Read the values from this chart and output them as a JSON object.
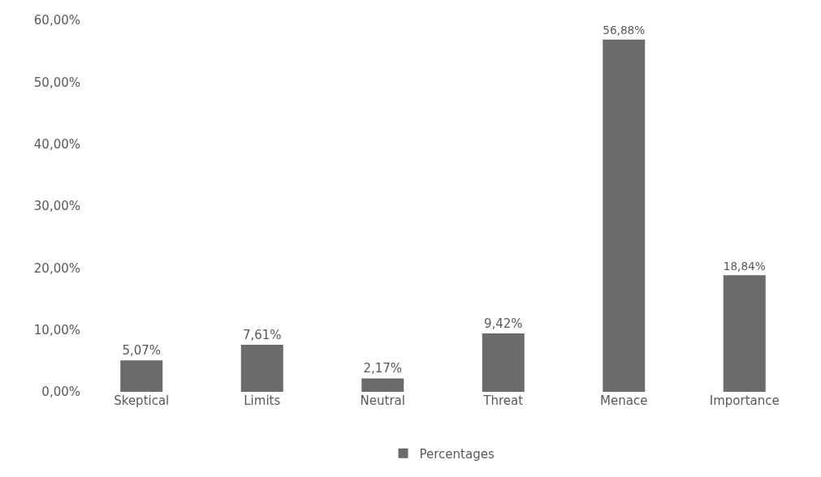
{
  "chart_data": {
    "type": "bar",
    "categories": [
      "Skeptical",
      "Limits",
      "Neutral",
      "Threat",
      "Menace",
      "Importance"
    ],
    "series": [
      {
        "name": "Percentages",
        "color": "#6b6b6b",
        "values": [
          5.07,
          7.61,
          2.17,
          9.42,
          56.88,
          18.84
        ],
        "value_labels": [
          "5,07%",
          "7,61%",
          "2,17%",
          "9,42%",
          "56,88%",
          "18,84%"
        ]
      }
    ],
    "ylim": [
      0,
      60
    ],
    "yticks": [
      {
        "value": 0,
        "label": "0,00%"
      },
      {
        "value": 10,
        "label": "10,00%"
      },
      {
        "value": 20,
        "label": "20,00%"
      },
      {
        "value": 30,
        "label": "30,00%"
      },
      {
        "value": 40,
        "label": "40,00%"
      },
      {
        "value": 50,
        "label": "50,00%"
      },
      {
        "value": 60,
        "label": "60,00%"
      }
    ],
    "legend": "bottom"
  }
}
